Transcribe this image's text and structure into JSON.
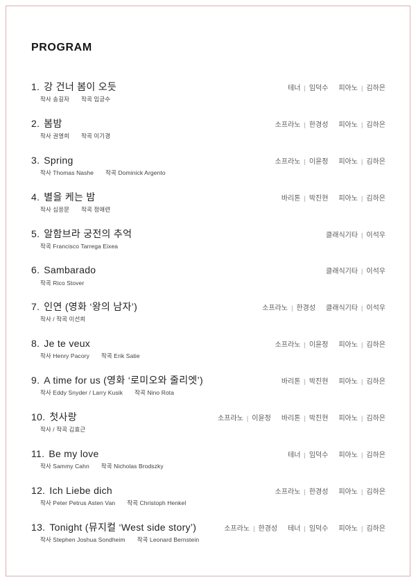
{
  "page": {
    "title": "PROGRAM",
    "border_color": "#d9b0ab",
    "text_color": "#222222",
    "performer_text_color": "#58595b"
  },
  "program": {
    "items": [
      {
        "no": "1.",
        "title": "강 건너 봄이 오듯",
        "credits": [
          "작사 송길자",
          "작곡 임긍수"
        ],
        "performers": [
          {
            "role": "테너",
            "name": "임덕수"
          },
          {
            "role": "피아노",
            "name": "김하은"
          }
        ]
      },
      {
        "no": "2.",
        "title": "봄밤",
        "credits": [
          "작사 권영희",
          "작곡 이기경"
        ],
        "performers": [
          {
            "role": "소프라노",
            "name": "한경성"
          },
          {
            "role": "피아노",
            "name": "김하은"
          }
        ]
      },
      {
        "no": "3.",
        "title": "Spring",
        "credits": [
          "작사 Thomas Nashe",
          "작곡 Dominick Argento"
        ],
        "performers": [
          {
            "role": "소프라노",
            "name": "이윤정"
          },
          {
            "role": "피아노",
            "name": "김하은"
          }
        ]
      },
      {
        "no": "4.",
        "title": "별을 케는 밤",
        "credits": [
          "작사 심응문",
          "작곡 정애련"
        ],
        "performers": [
          {
            "role": "바리톤",
            "name": "박진현"
          },
          {
            "role": "피아노",
            "name": "김하은"
          }
        ]
      },
      {
        "no": "5.",
        "title": "알함브라 궁전의 추억",
        "credits": [
          "작곡 Francisco Tarrega Eixea"
        ],
        "performers": [
          {
            "role": "클래식기타",
            "name": "이석우"
          }
        ]
      },
      {
        "no": "6.",
        "title": "Sambarado",
        "credits": [
          "작곡 Rico Stover"
        ],
        "performers": [
          {
            "role": "클래식기타",
            "name": "이석우"
          }
        ]
      },
      {
        "no": "7.",
        "title": "인연 (영화 ‘왕의 남자’)",
        "credits": [
          "작사 / 작곡 이선희"
        ],
        "performers": [
          {
            "role": "소프라노",
            "name": "한경성"
          },
          {
            "role": "클래식기타",
            "name": "이석우"
          }
        ]
      },
      {
        "no": "8.",
        "title": "Je te veux",
        "credits": [
          "작사 Henry Pacory",
          "작곡 Erik Satie"
        ],
        "performers": [
          {
            "role": "소프라노",
            "name": "이윤정"
          },
          {
            "role": "피아노",
            "name": "김하은"
          }
        ]
      },
      {
        "no": "9.",
        "title": "A time for us (영화 ‘로미오와 줄리엣’)",
        "credits": [
          "작사 Eddy Snyder / Larry Kusik",
          "작곡 Nino Rota"
        ],
        "performers": [
          {
            "role": "바리톤",
            "name": "박진현"
          },
          {
            "role": "피아노",
            "name": "김하은"
          }
        ]
      },
      {
        "no": "10.",
        "title": "첫사랑",
        "credits": [
          "작사 / 작곡 김효근"
        ],
        "performers": [
          {
            "role": "소프라노",
            "name": "이윤정"
          },
          {
            "role": "바리톤",
            "name": "박진현"
          },
          {
            "role": "피아노",
            "name": "김하은"
          }
        ]
      },
      {
        "no": "11.",
        "title": "Be my love",
        "credits": [
          "작사 Sammy Cahn",
          "작곡 Nicholas Brodszky"
        ],
        "performers": [
          {
            "role": "테너",
            "name": "임덕수"
          },
          {
            "role": "피아노",
            "name": "김하은"
          }
        ]
      },
      {
        "no": "12.",
        "title": "Ich Liebe dich",
        "credits": [
          "작사 Peter Petrus Asten Van",
          "작곡 Christoph Henkel"
        ],
        "performers": [
          {
            "role": "소프라노",
            "name": "한경성"
          },
          {
            "role": "피아노",
            "name": "김하은"
          }
        ]
      },
      {
        "no": "13.",
        "title": "Tonight (뮤지컬 ‘West side story’)",
        "credits": [
          "작사 Stephen Joshua Sondheim",
          "작곡 Leonard Bernstein"
        ],
        "performers": [
          {
            "role": "소프라노",
            "name": "한경성"
          },
          {
            "role": "테너",
            "name": "임덕수"
          },
          {
            "role": "피아노",
            "name": "김하은"
          }
        ]
      }
    ]
  }
}
